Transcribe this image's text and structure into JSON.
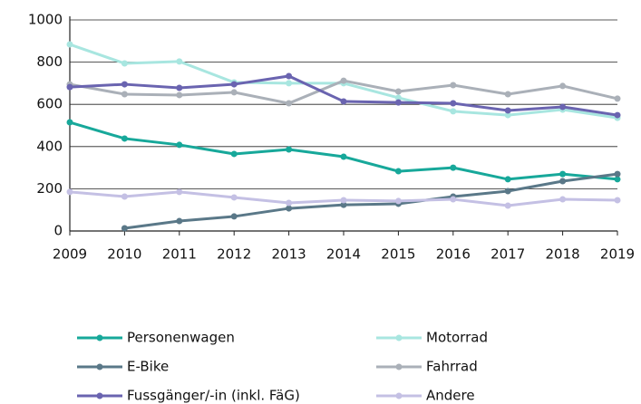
{
  "chart_data": {
    "type": "line",
    "x": [
      2009,
      2010,
      2011,
      2012,
      2013,
      2014,
      2015,
      2016,
      2017,
      2018,
      2019
    ],
    "xlim": [
      2009,
      2019
    ],
    "xticks": [
      2009,
      2010,
      2011,
      2012,
      2013,
      2014,
      2015,
      2016,
      2017,
      2018,
      2019
    ],
    "ylim": [
      0,
      1000
    ],
    "yticks": [
      0,
      200,
      400,
      600,
      800,
      1000
    ],
    "grid": true,
    "series": [
      {
        "name": "Personenwagen",
        "color": "#17a89a",
        "values": [
          515,
          438,
          408,
          365,
          386,
          352,
          283,
          300,
          245,
          270,
          245
        ]
      },
      {
        "name": "Motorrad",
        "color": "#a8e6e0",
        "values": [
          884,
          794,
          803,
          704,
          700,
          700,
          631,
          567,
          549,
          575,
          536
        ]
      },
      {
        "name": "E-Bike",
        "color": "#5a7888",
        "values": [
          null,
          13,
          47,
          69,
          107,
          124,
          129,
          163,
          189,
          236,
          270
        ]
      },
      {
        "name": "Fahrrad",
        "color": "#aab0b8",
        "values": [
          695,
          648,
          644,
          657,
          605,
          712,
          661,
          691,
          648,
          687,
          627
        ]
      },
      {
        "name": "Fussgänger/-in (inkl. FäG)",
        "color": "#6a64b0",
        "values": [
          682,
          695,
          678,
          695,
          734,
          614,
          609,
          605,
          571,
          588,
          549
        ]
      },
      {
        "name": "Andere",
        "color": "#c4c0e4",
        "values": [
          185,
          163,
          185,
          159,
          133,
          146,
          142,
          150,
          120,
          150,
          146
        ]
      }
    ]
  }
}
